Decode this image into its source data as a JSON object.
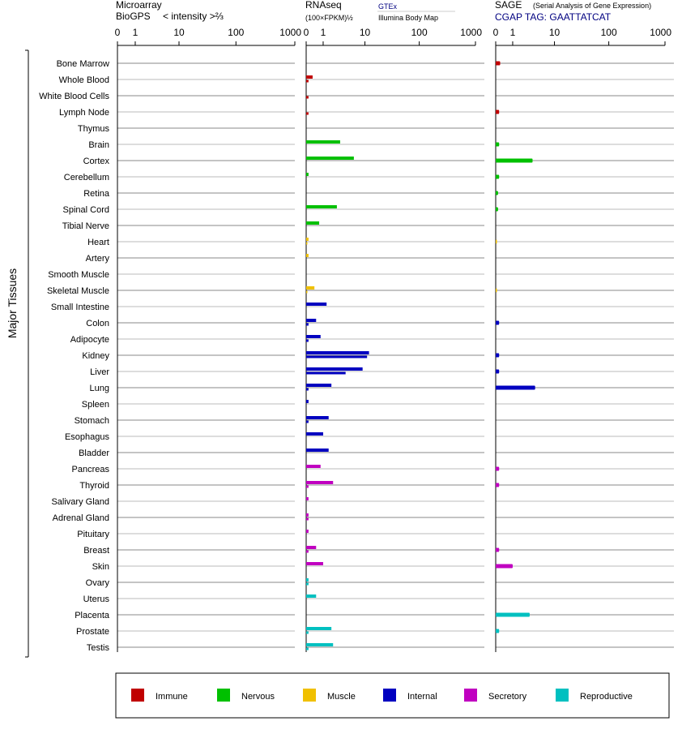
{
  "panels": [
    {
      "title1": "Microarray",
      "title2_left": "BioGPS",
      "title2_right": "< intensity >⅔",
      "ticks": [
        "0",
        "1",
        "10",
        "100",
        "1000"
      ]
    },
    {
      "title1": "RNAseq",
      "title2_left": "(100×FPKM)½",
      "source_top": "GTEx",
      "source_bottom": "Illumina Body Map",
      "ticks": [
        "0",
        "1",
        "10",
        "100",
        "1000"
      ]
    },
    {
      "title1": "SAGE",
      "title1_sub": "(Serial Analysis of Gene Expression)",
      "title2_left": "CGAP TAG: GAATTATCAT",
      "ticks": [
        "0",
        "1",
        "10",
        "100",
        "1000"
      ]
    }
  ],
  "group_label": "Major Tissues",
  "colors": {
    "Immune": "#c00000",
    "Nervous": "#00c000",
    "Muscle": "#f0c000",
    "Internal": "#0000c0",
    "Secretory": "#c000c0",
    "Reproductive": "#00c0c0"
  },
  "legend": [
    "Immune",
    "Nervous",
    "Muscle",
    "Internal",
    "Secretory",
    "Reproductive"
  ],
  "chart_data": {
    "type": "bar",
    "orientation": "horizontal",
    "series": [
      {
        "name": "Microarray"
      },
      {
        "name": "RNAseq GTEx"
      },
      {
        "name": "RNAseq Illumina Body Map"
      },
      {
        "name": "SAGE"
      }
    ],
    "tissues": [
      {
        "name": "Bone Marrow",
        "group": "Immune",
        "rna_gtex": null,
        "rna_ibm": null,
        "sage": 0.2
      },
      {
        "name": "Whole Blood",
        "group": "Immune",
        "rna_gtex": 0.3,
        "rna_ibm": 0.1,
        "sage": null
      },
      {
        "name": "White Blood Cells",
        "group": "Immune",
        "rna_gtex": null,
        "rna_ibm": 0.1,
        "sage": null
      },
      {
        "name": "Lymph Node",
        "group": "Immune",
        "rna_gtex": null,
        "rna_ibm": 0.1,
        "sage": 0.15
      },
      {
        "name": "Thymus",
        "group": "Immune",
        "rna_gtex": null,
        "rna_ibm": null,
        "sage": null
      },
      {
        "name": "Brain",
        "group": "Nervous",
        "rna_gtex": 3,
        "rna_ibm": null,
        "sage": 0.15
      },
      {
        "name": "Cortex",
        "group": "Nervous",
        "rna_gtex": 6,
        "rna_ibm": null,
        "sage": 3.5
      },
      {
        "name": "Cerebellum",
        "group": "Nervous",
        "rna_gtex": 0.1,
        "rna_ibm": null,
        "sage": 0.15
      },
      {
        "name": "Retina",
        "group": "Nervous",
        "rna_gtex": null,
        "rna_ibm": null,
        "sage": 0.1
      },
      {
        "name": "Spinal Cord",
        "group": "Nervous",
        "rna_gtex": 2.5,
        "rna_ibm": null,
        "sage": 0.1
      },
      {
        "name": "Tibial Nerve",
        "group": "Nervous",
        "rna_gtex": 0.7,
        "rna_ibm": null,
        "sage": null
      },
      {
        "name": "Heart",
        "group": "Muscle",
        "rna_gtex": 0.1,
        "rna_ibm": 0.05,
        "sage": 0.05
      },
      {
        "name": "Artery",
        "group": "Muscle",
        "rna_gtex": 0.1,
        "rna_ibm": null,
        "sage": null
      },
      {
        "name": "Smooth Muscle",
        "group": "Muscle",
        "rna_gtex": null,
        "rna_ibm": null,
        "sage": null
      },
      {
        "name": "Skeletal Muscle",
        "group": "Muscle",
        "rna_gtex": 0.4,
        "rna_ibm": 0.05,
        "sage": 0.05
      },
      {
        "name": "Small Intestine",
        "group": "Internal",
        "rna_gtex": 1.3,
        "rna_ibm": null,
        "sage": null
      },
      {
        "name": "Colon",
        "group": "Internal",
        "rna_gtex": 0.5,
        "rna_ibm": 0.1,
        "sage": 0.15
      },
      {
        "name": "Adipocyte",
        "group": "Internal",
        "rna_gtex": 0.8,
        "rna_ibm": 0.1,
        "sage": null
      },
      {
        "name": "Kidney",
        "group": "Internal",
        "rna_gtex": 12,
        "rna_ibm": 11,
        "sage": 0.15
      },
      {
        "name": "Liver",
        "group": "Internal",
        "rna_gtex": 9,
        "rna_ibm": 4,
        "sage": 0.15
      },
      {
        "name": "Lung",
        "group": "Internal",
        "rna_gtex": 1.8,
        "rna_ibm": 0.1,
        "sage": 4
      },
      {
        "name": "Spleen",
        "group": "Internal",
        "rna_gtex": 0.1,
        "rna_ibm": null,
        "sage": null
      },
      {
        "name": "Stomach",
        "group": "Internal",
        "rna_gtex": 1.5,
        "rna_ibm": 0.1,
        "sage": null
      },
      {
        "name": "Esophagus",
        "group": "Internal",
        "rna_gtex": 1,
        "rna_ibm": null,
        "sage": null
      },
      {
        "name": "Bladder",
        "group": "Internal",
        "rna_gtex": 1.5,
        "rna_ibm": null,
        "sage": null
      },
      {
        "name": "Pancreas",
        "group": "Secretory",
        "rna_gtex": 0.8,
        "rna_ibm": null,
        "sage": 0.15
      },
      {
        "name": "Thyroid",
        "group": "Secretory",
        "rna_gtex": 2,
        "rna_ibm": 0.1,
        "sage": 0.15
      },
      {
        "name": "Salivary Gland",
        "group": "Secretory",
        "rna_gtex": 0.1,
        "rna_ibm": null,
        "sage": null
      },
      {
        "name": "Adrenal Gland",
        "group": "Secretory",
        "rna_gtex": 0.1,
        "rna_ibm": 0.1,
        "sage": null
      },
      {
        "name": "Pituitary",
        "group": "Secretory",
        "rna_gtex": 0.1,
        "rna_ibm": null,
        "sage": null
      },
      {
        "name": "Breast",
        "group": "Secretory",
        "rna_gtex": 0.5,
        "rna_ibm": 0.1,
        "sage": 0.15
      },
      {
        "name": "Skin",
        "group": "Secretory",
        "rna_gtex": 1,
        "rna_ibm": null,
        "sage": 1
      },
      {
        "name": "Ovary",
        "group": "Reproductive",
        "rna_gtex": 0.1,
        "rna_ibm": 0.1,
        "sage": null
      },
      {
        "name": "Uterus",
        "group": "Reproductive",
        "rna_gtex": 0.5,
        "rna_ibm": null,
        "sage": null
      },
      {
        "name": "Placenta",
        "group": "Reproductive",
        "rna_gtex": null,
        "rna_ibm": null,
        "sage": 3
      },
      {
        "name": "Prostate",
        "group": "Reproductive",
        "rna_gtex": 1.8,
        "rna_ibm": 0.1,
        "sage": 0.15
      },
      {
        "name": "Testis",
        "group": "Reproductive",
        "rna_gtex": 2,
        "rna_ibm": 0.1,
        "sage": null
      }
    ],
    "axis_ticks": [
      0,
      1,
      10,
      100,
      1000
    ],
    "xlim": [
      0,
      1000
    ],
    "grid": true
  }
}
